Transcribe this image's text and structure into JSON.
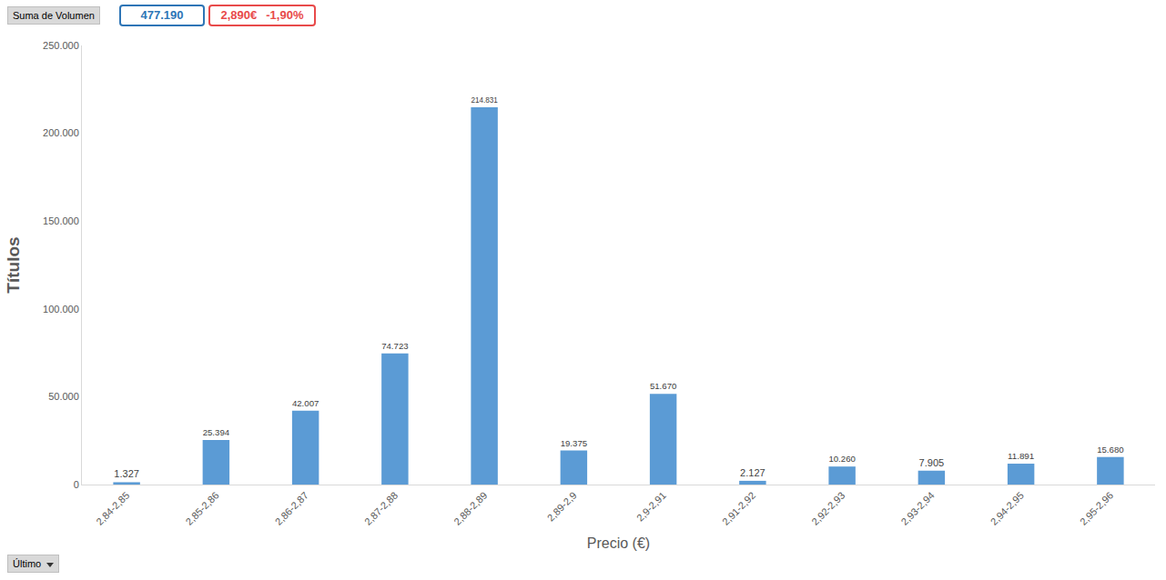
{
  "header": {
    "field_button": "Suma de Volumen",
    "total": "477.190",
    "last_price": "2,890€",
    "change": "-1,90%"
  },
  "footer": {
    "filter_button": "Último"
  },
  "chart_data": {
    "type": "bar",
    "x_label": "Precio (€)",
    "y_label": "Títulos",
    "categories": [
      "2,84-2,85",
      "2,85-2,86",
      "2,86-2,87",
      "2,87-2,88",
      "2,88-2,89",
      "2,89-2,9",
      "2,9-2,91",
      "2,91-2,92",
      "2,92-2,93",
      "2,93-2,94",
      "2,94-2,95",
      "2,95-2,96"
    ],
    "values": [
      1327,
      25394,
      42007,
      74723,
      214831,
      19375,
      51670,
      2127,
      10260,
      7905,
      11891,
      15680
    ],
    "value_labels": [
      "1.327",
      "25.394",
      "42.007",
      "74.723",
      "214.831",
      "19.375",
      "51.670",
      "2.127",
      "10.260",
      "7.905",
      "11.891",
      "15.680"
    ],
    "color": "#5b9bd5",
    "ylim": [
      0,
      250000
    ],
    "yticks": [
      0,
      {
        "value": 50000,
        "label": "50.000"
      },
      {
        "value": 100000,
        "label": "100.000"
      },
      {
        "value": 150000,
        "label": "150.000"
      },
      {
        "value": 200000,
        "label": "200.000"
      },
      {
        "value": 250000,
        "label": "250.000"
      }
    ],
    "grid": false,
    "data_labels": true
  }
}
